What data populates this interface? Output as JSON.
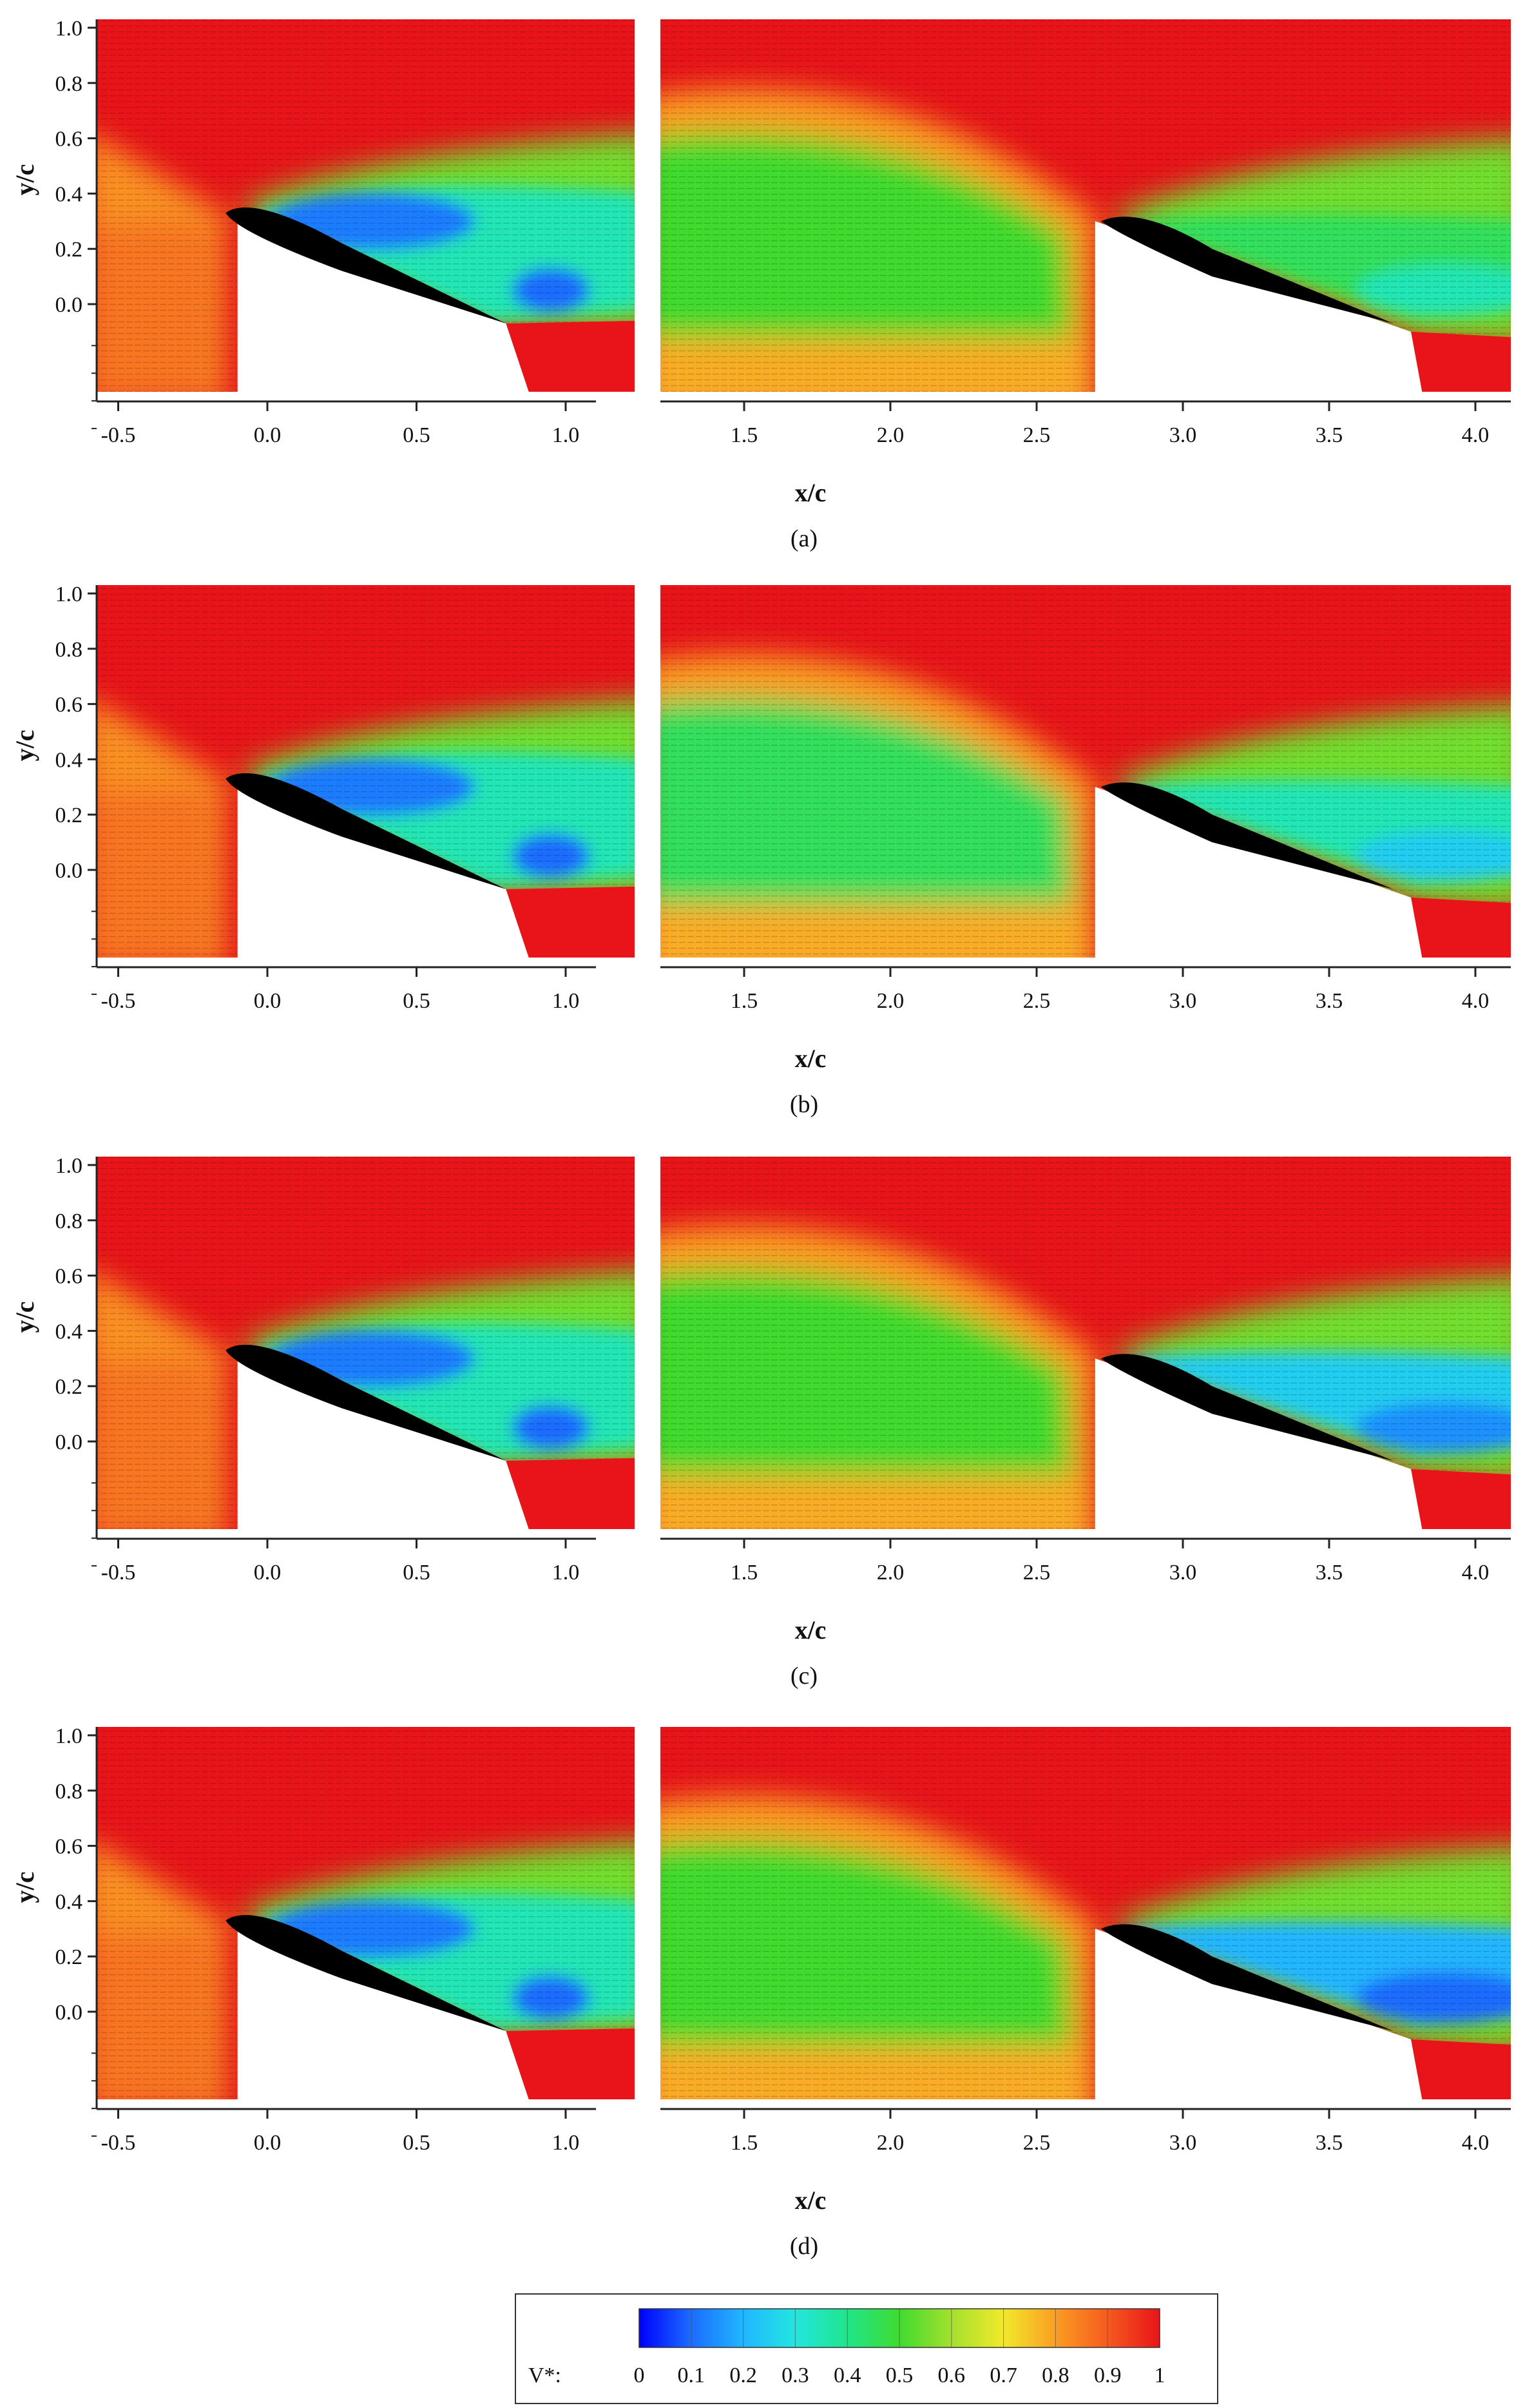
{
  "chart_data": {
    "type": "heatmap",
    "description_units": "normalized velocity V*",
    "xlabel": "x/c",
    "ylabel": "y/c",
    "left_panel": {
      "xticks": [
        "-0.5",
        "0.0",
        "0.5",
        "1.0"
      ],
      "xtick_values": [
        -0.5,
        0.0,
        0.5,
        1.0
      ],
      "yticks": [
        "1.0",
        "0.8",
        "0.6",
        "0.4",
        "0.2",
        "0.0"
      ],
      "ytick_values": [
        1.0,
        0.8,
        0.6,
        0.4,
        0.2,
        0.0
      ],
      "xlim": [
        -0.6,
        1.3
      ],
      "ylim": [
        -0.2,
        1.05
      ]
    },
    "right_panel": {
      "xticks": [
        "1.5",
        "2.0",
        "2.5",
        "3.0",
        "3.5",
        "4.0"
      ],
      "xtick_values": [
        1.5,
        2.0,
        2.5,
        3.0,
        3.5,
        4.0
      ],
      "xlim": [
        1.2,
        4.1
      ]
    },
    "panels": [
      {
        "caption": "(a)",
        "secondary_core_v": 0.5,
        "rear_wake_v": 0.35
      },
      {
        "caption": "(b)",
        "secondary_core_v": 0.45,
        "rear_wake_v": 0.25
      },
      {
        "caption": "(c)",
        "secondary_core_v": 0.5,
        "rear_wake_v": 0.15
      },
      {
        "caption": "(d)",
        "secondary_core_v": 0.5,
        "rear_wake_v": 0.1
      }
    ],
    "colorbar": {
      "label": "V*:",
      "ticks": [
        "0",
        "0.1",
        "0.2",
        "0.3",
        "0.4",
        "0.5",
        "0.6",
        "0.7",
        "0.8",
        "0.9",
        "1"
      ],
      "tick_values": [
        0,
        0.1,
        0.2,
        0.3,
        0.4,
        0.5,
        0.6,
        0.7,
        0.8,
        0.9,
        1.0
      ],
      "colors": [
        "#0000ff",
        "#1a6cff",
        "#21b6ff",
        "#22e6e0",
        "#20e58a",
        "#3fdb2f",
        "#a4e02e",
        "#f2e92a",
        "#fb9d24",
        "#f65a1e",
        "#e8141a"
      ]
    }
  }
}
